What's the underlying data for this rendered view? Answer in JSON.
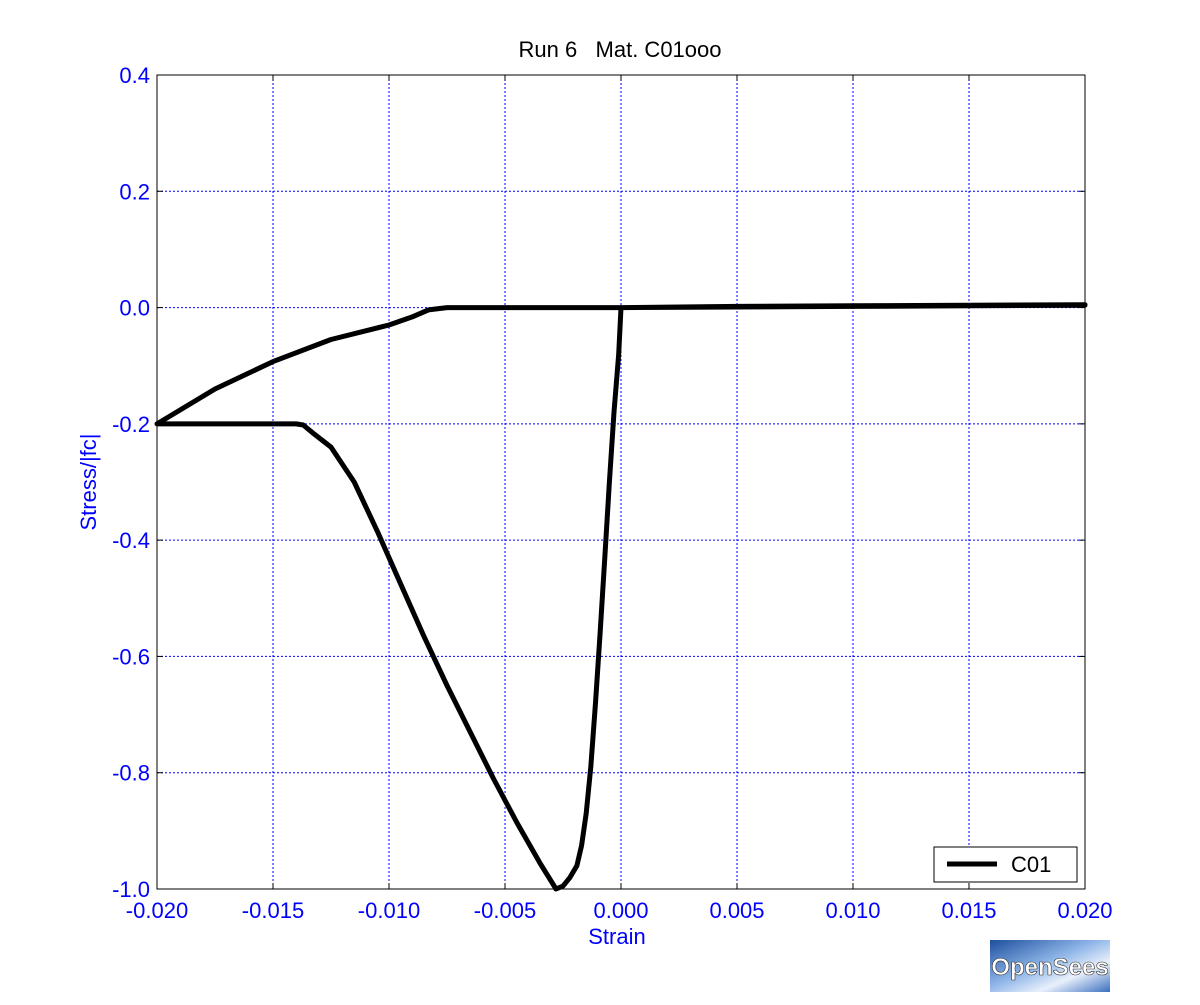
{
  "chart_data": {
    "type": "line",
    "title": "Run 6   Mat. C01ooo",
    "xlabel": "Strain",
    "ylabel": "Stress/|fc|",
    "xlim": [
      -0.02,
      0.02
    ],
    "ylim": [
      -1.0,
      0.4
    ],
    "xticks": [
      -0.02,
      -0.015,
      -0.01,
      -0.005,
      0.0,
      0.005,
      0.01,
      0.015,
      0.02
    ],
    "xtick_labels": [
      "-0.020",
      "-0.015",
      "-0.010",
      "-0.005",
      "0.000",
      "0.005",
      "0.010",
      "0.015",
      "0.020"
    ],
    "yticks": [
      0.4,
      0.2,
      0.0,
      -0.2,
      -0.4,
      -0.6,
      -0.8,
      -1.0
    ],
    "ytick_labels": [
      "0.4",
      "0.2",
      "0.0",
      "-0.2",
      "-0.4",
      "-0.6",
      "-0.8",
      "-1.0"
    ],
    "grid": true,
    "legend_position": "bottom-right",
    "series": [
      {
        "name": "C01",
        "color": "#000000",
        "x": [
          0.02,
          0.015,
          0.01,
          0.005,
          0.0,
          -0.0001,
          -0.0003,
          -0.0005,
          -0.0007,
          -0.0009,
          -0.0011,
          -0.0013,
          -0.0015,
          -0.0017,
          -0.0019,
          -0.0022,
          -0.0025,
          -0.0028,
          -0.0035,
          -0.0045,
          -0.0055,
          -0.0065,
          -0.0075,
          -0.0085,
          -0.0095,
          -0.0105,
          -0.0115,
          -0.0125,
          -0.0133,
          -0.0137,
          -0.014,
          -0.015,
          -0.0175,
          -0.02,
          -0.0175,
          -0.015,
          -0.0125,
          -0.01,
          -0.009,
          -0.0083,
          -0.0075,
          -0.005,
          -0.0025,
          0.0,
          0.005,
          0.01,
          0.015,
          0.02
        ],
        "y": [
          0.005,
          0.004,
          0.003,
          0.002,
          0.0,
          -0.08,
          -0.18,
          -0.3,
          -0.43,
          -0.56,
          -0.68,
          -0.79,
          -0.87,
          -0.925,
          -0.96,
          -0.98,
          -0.995,
          -1.0,
          -0.955,
          -0.885,
          -0.81,
          -0.73,
          -0.65,
          -0.565,
          -0.475,
          -0.385,
          -0.3,
          -0.24,
          -0.215,
          -0.202,
          -0.2,
          -0.2,
          -0.2,
          -0.2,
          -0.14,
          -0.093,
          -0.055,
          -0.03,
          -0.016,
          -0.004,
          0.0,
          0.0,
          0.0,
          0.0,
          0.001,
          0.002,
          0.003,
          0.004
        ]
      }
    ]
  },
  "logo": {
    "text": "OpenSees"
  }
}
